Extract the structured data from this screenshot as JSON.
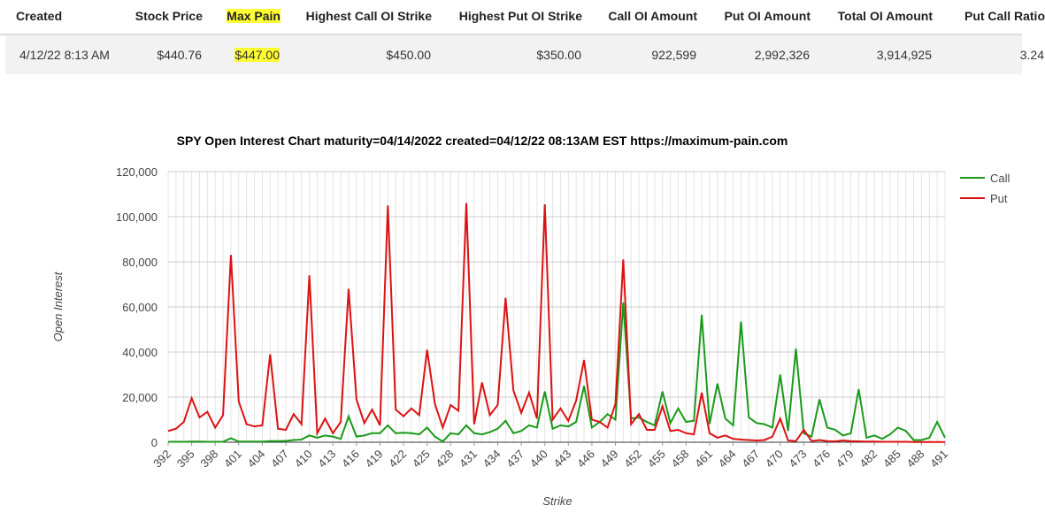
{
  "table": {
    "headers": [
      "Created",
      "Stock Price",
      "Max Pain",
      "Highest Call OI Strike",
      "Highest Put OI Strike",
      "Call OI Amount",
      "Put OI Amount",
      "Total OI Amount",
      "Put Call Ratio"
    ],
    "rows": [
      [
        "4/12/22 8:13 AM",
        "$440.76",
        "$447.00",
        "$450.00",
        "$350.00",
        "922,599",
        "2,992,326",
        "3,914,925",
        "3.24"
      ]
    ]
  },
  "chart_data": {
    "type": "line",
    "title": "SPY Open Interest Chart maturity=04/14/2022 created=04/12/22 08:13AM EST https://maximum-pain.com",
    "x_label": "Strike",
    "y_label": "Open Interest",
    "legend": "right",
    "grid": true,
    "x": [
      392,
      393,
      394,
      395,
      396,
      397,
      398,
      399,
      400,
      401,
      402,
      403,
      404,
      405,
      406,
      407,
      408,
      409,
      410,
      411,
      412,
      413,
      414,
      415,
      416,
      417,
      418,
      419,
      420,
      421,
      422,
      423,
      424,
      425,
      426,
      427,
      428,
      429,
      430,
      431,
      432,
      433,
      434,
      435,
      436,
      437,
      438,
      439,
      440,
      441,
      442,
      443,
      444,
      445,
      446,
      447,
      448,
      449,
      450,
      451,
      452,
      453,
      454,
      455,
      456,
      457,
      458,
      459,
      460,
      461,
      462,
      463,
      464,
      465,
      466,
      467,
      468,
      469,
      470,
      471,
      472,
      473,
      474,
      475,
      476,
      477,
      478,
      479,
      480,
      481,
      482,
      483,
      484,
      485,
      486,
      487,
      488,
      489,
      490,
      491
    ],
    "xlim": [
      392,
      491
    ],
    "xticks": [
      392,
      395,
      398,
      401,
      404,
      407,
      410,
      413,
      416,
      419,
      422,
      425,
      428,
      431,
      434,
      437,
      440,
      443,
      446,
      449,
      452,
      455,
      458,
      461,
      464,
      467,
      470,
      473,
      476,
      479,
      482,
      485,
      488,
      491
    ],
    "ylim": [
      0,
      120000
    ],
    "yticks": [
      0,
      {
        "value": 20000,
        "label": "20,000"
      },
      {
        "value": 40000,
        "label": "40,000"
      },
      {
        "value": 60000,
        "label": "60,000"
      },
      {
        "value": 80000,
        "label": "80,000"
      },
      {
        "value": 100000,
        "label": "100,000"
      },
      {
        "value": 120000,
        "label": "120,000"
      }
    ],
    "series": [
      {
        "name": "Call",
        "color": "#1a9a1a",
        "values": [
          200,
          200,
          200,
          300,
          300,
          200,
          200,
          200,
          1800,
          300,
          300,
          300,
          300,
          500,
          500,
          600,
          1000,
          1200,
          3000,
          2000,
          3000,
          2500,
          1500,
          11500,
          2500,
          3000,
          4000,
          4000,
          7500,
          4000,
          4200,
          4000,
          3500,
          6500,
          2500,
          300,
          4000,
          3500,
          7500,
          4000,
          3500,
          4500,
          6000,
          9500,
          4000,
          5000,
          7500,
          6500,
          22500,
          6000,
          7500,
          7000,
          9000,
          25000,
          6500,
          9000,
          12500,
          10000,
          62000,
          10500,
          11000,
          9000,
          7500,
          22500,
          8500,
          15000,
          9000,
          9500,
          56500,
          8000,
          26000,
          10500,
          7500,
          53500,
          11000,
          8500,
          8000,
          6500,
          30000,
          5000,
          41500,
          4000,
          2500,
          19000,
          6500,
          5500,
          3000,
          4000,
          23500,
          2000,
          3000,
          1500,
          3500,
          6500,
          5000,
          1000,
          1000,
          2000,
          9000,
          2000
        ]
      },
      {
        "name": "Put",
        "color": "#dc1212",
        "values": [
          5000,
          6000,
          9000,
          19500,
          11000,
          13500,
          6500,
          12000,
          83000,
          18000,
          8000,
          7000,
          7500,
          39000,
          6000,
          5500,
          12500,
          8000,
          74000,
          4000,
          10500,
          4000,
          9000,
          68000,
          19000,
          8500,
          14500,
          7500,
          105000,
          14500,
          11500,
          15000,
          12000,
          41000,
          17000,
          6500,
          16500,
          14000,
          106000,
          8000,
          26500,
          12000,
          16500,
          64000,
          23000,
          13000,
          22000,
          10500,
          105500,
          10000,
          15000,
          9500,
          18500,
          36500,
          10000,
          9000,
          6500,
          17000,
          81000,
          8000,
          12500,
          5500,
          5500,
          16000,
          5000,
          5500,
          4000,
          3500,
          22000,
          4000,
          2000,
          3000,
          1500,
          1200,
          1000,
          800,
          1000,
          2500,
          10500,
          800,
          500,
          5500,
          500,
          1000,
          500,
          400,
          800,
          500,
          400,
          300,
          300,
          200,
          200,
          200,
          200,
          100,
          100,
          100,
          100,
          100
        ]
      }
    ]
  }
}
